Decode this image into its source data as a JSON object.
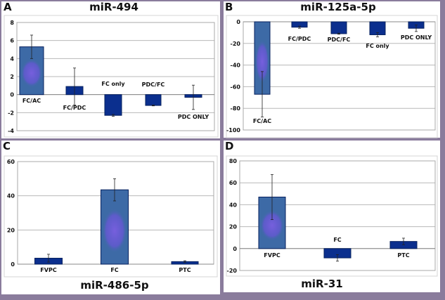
{
  "chart_data": [
    {
      "panel": "A",
      "type": "bar",
      "title": "miR-494",
      "categories": [
        "FC/AC",
        "FC/PDC",
        "FC only",
        "PDC/FC",
        "PDC ONLY"
      ],
      "values": [
        5.3,
        0.9,
        -2.3,
        -1.2,
        -0.3
      ],
      "error": [
        1.3,
        2.05,
        0.1,
        0.05,
        1.35
      ],
      "ylim": [
        -4,
        8
      ],
      "yticks": [
        8,
        6,
        4,
        2,
        0,
        -2,
        -4
      ],
      "grid": true,
      "xlabel": "",
      "ylabel": ""
    },
    {
      "panel": "B",
      "type": "bar",
      "title": "miR-125a-5p",
      "categories": [
        "FC/AC",
        "FC/PDC",
        "PDC/FC",
        "FC only",
        "PDC ONLY"
      ],
      "values": [
        -67,
        -5,
        -11,
        -12,
        -6
      ],
      "error": [
        21,
        1,
        0.5,
        2,
        3
      ],
      "ylim": [
        -100,
        0
      ],
      "yticks": [
        0,
        -20,
        -40,
        -60,
        -80,
        -100
      ],
      "grid": true,
      "xlabel": "",
      "ylabel": ""
    },
    {
      "panel": "C",
      "type": "bar",
      "title": "miR-486-5p",
      "categories": [
        "FVPC",
        "FC",
        "PTC"
      ],
      "values": [
        3.5,
        43.5,
        1.5
      ],
      "error": [
        2.3,
        6.5,
        0.5
      ],
      "ylim": [
        0,
        60
      ],
      "yticks": [
        60,
        40,
        20,
        0
      ],
      "grid": true,
      "xlabel": "",
      "ylabel": ""
    },
    {
      "panel": "D",
      "type": "bar",
      "title": "miR-31",
      "categories": [
        "FVPC",
        "FC",
        "PTC"
      ],
      "values": [
        47,
        -8.5,
        6.5
      ],
      "error": [
        20.5,
        3,
        3
      ],
      "ylim": [
        -20,
        80
      ],
      "yticks": [
        80,
        60,
        40,
        20,
        0,
        -20
      ],
      "grid": true,
      "xlabel": "",
      "ylabel": ""
    }
  ],
  "colors": {
    "bar": "#0b2f8e",
    "bar_highlight": "#3d6aa6",
    "glow": "#7a5fe0",
    "grid": "#b8b8b8",
    "frame": "#8a7c9c"
  }
}
